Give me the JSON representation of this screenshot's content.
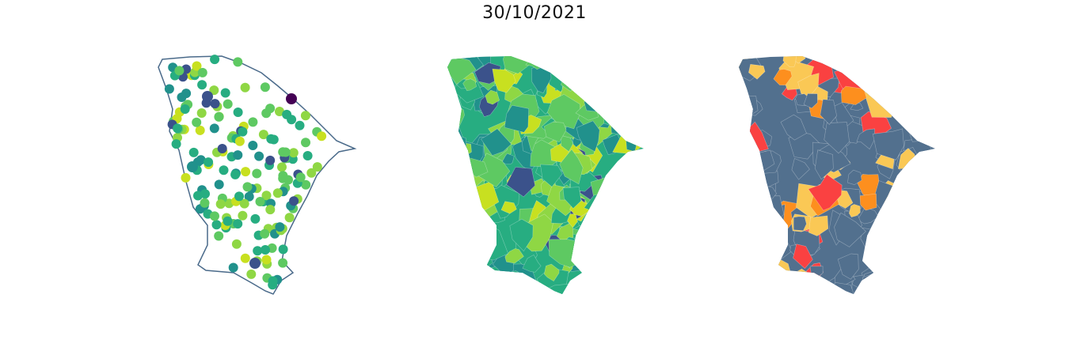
{
  "title": "30/10/2021",
  "colors": {
    "outline": "#4a6a8a",
    "viridis": [
      "#440154",
      "#3b528b",
      "#21918c",
      "#27ad81",
      "#5ec962",
      "#8fd744",
      "#c8e020",
      "#fde725"
    ],
    "risk_base": "#52708e",
    "risk_moderate": "#fac855",
    "risk_high": "#fd8f1e",
    "risk_very_high": "#fa4141"
  },
  "panels": [
    {
      "name": "point-map",
      "type": "scatter"
    },
    {
      "name": "viridis-choropleth",
      "type": "choropleth"
    },
    {
      "name": "risk-category-map",
      "type": "choropleth"
    }
  ]
}
